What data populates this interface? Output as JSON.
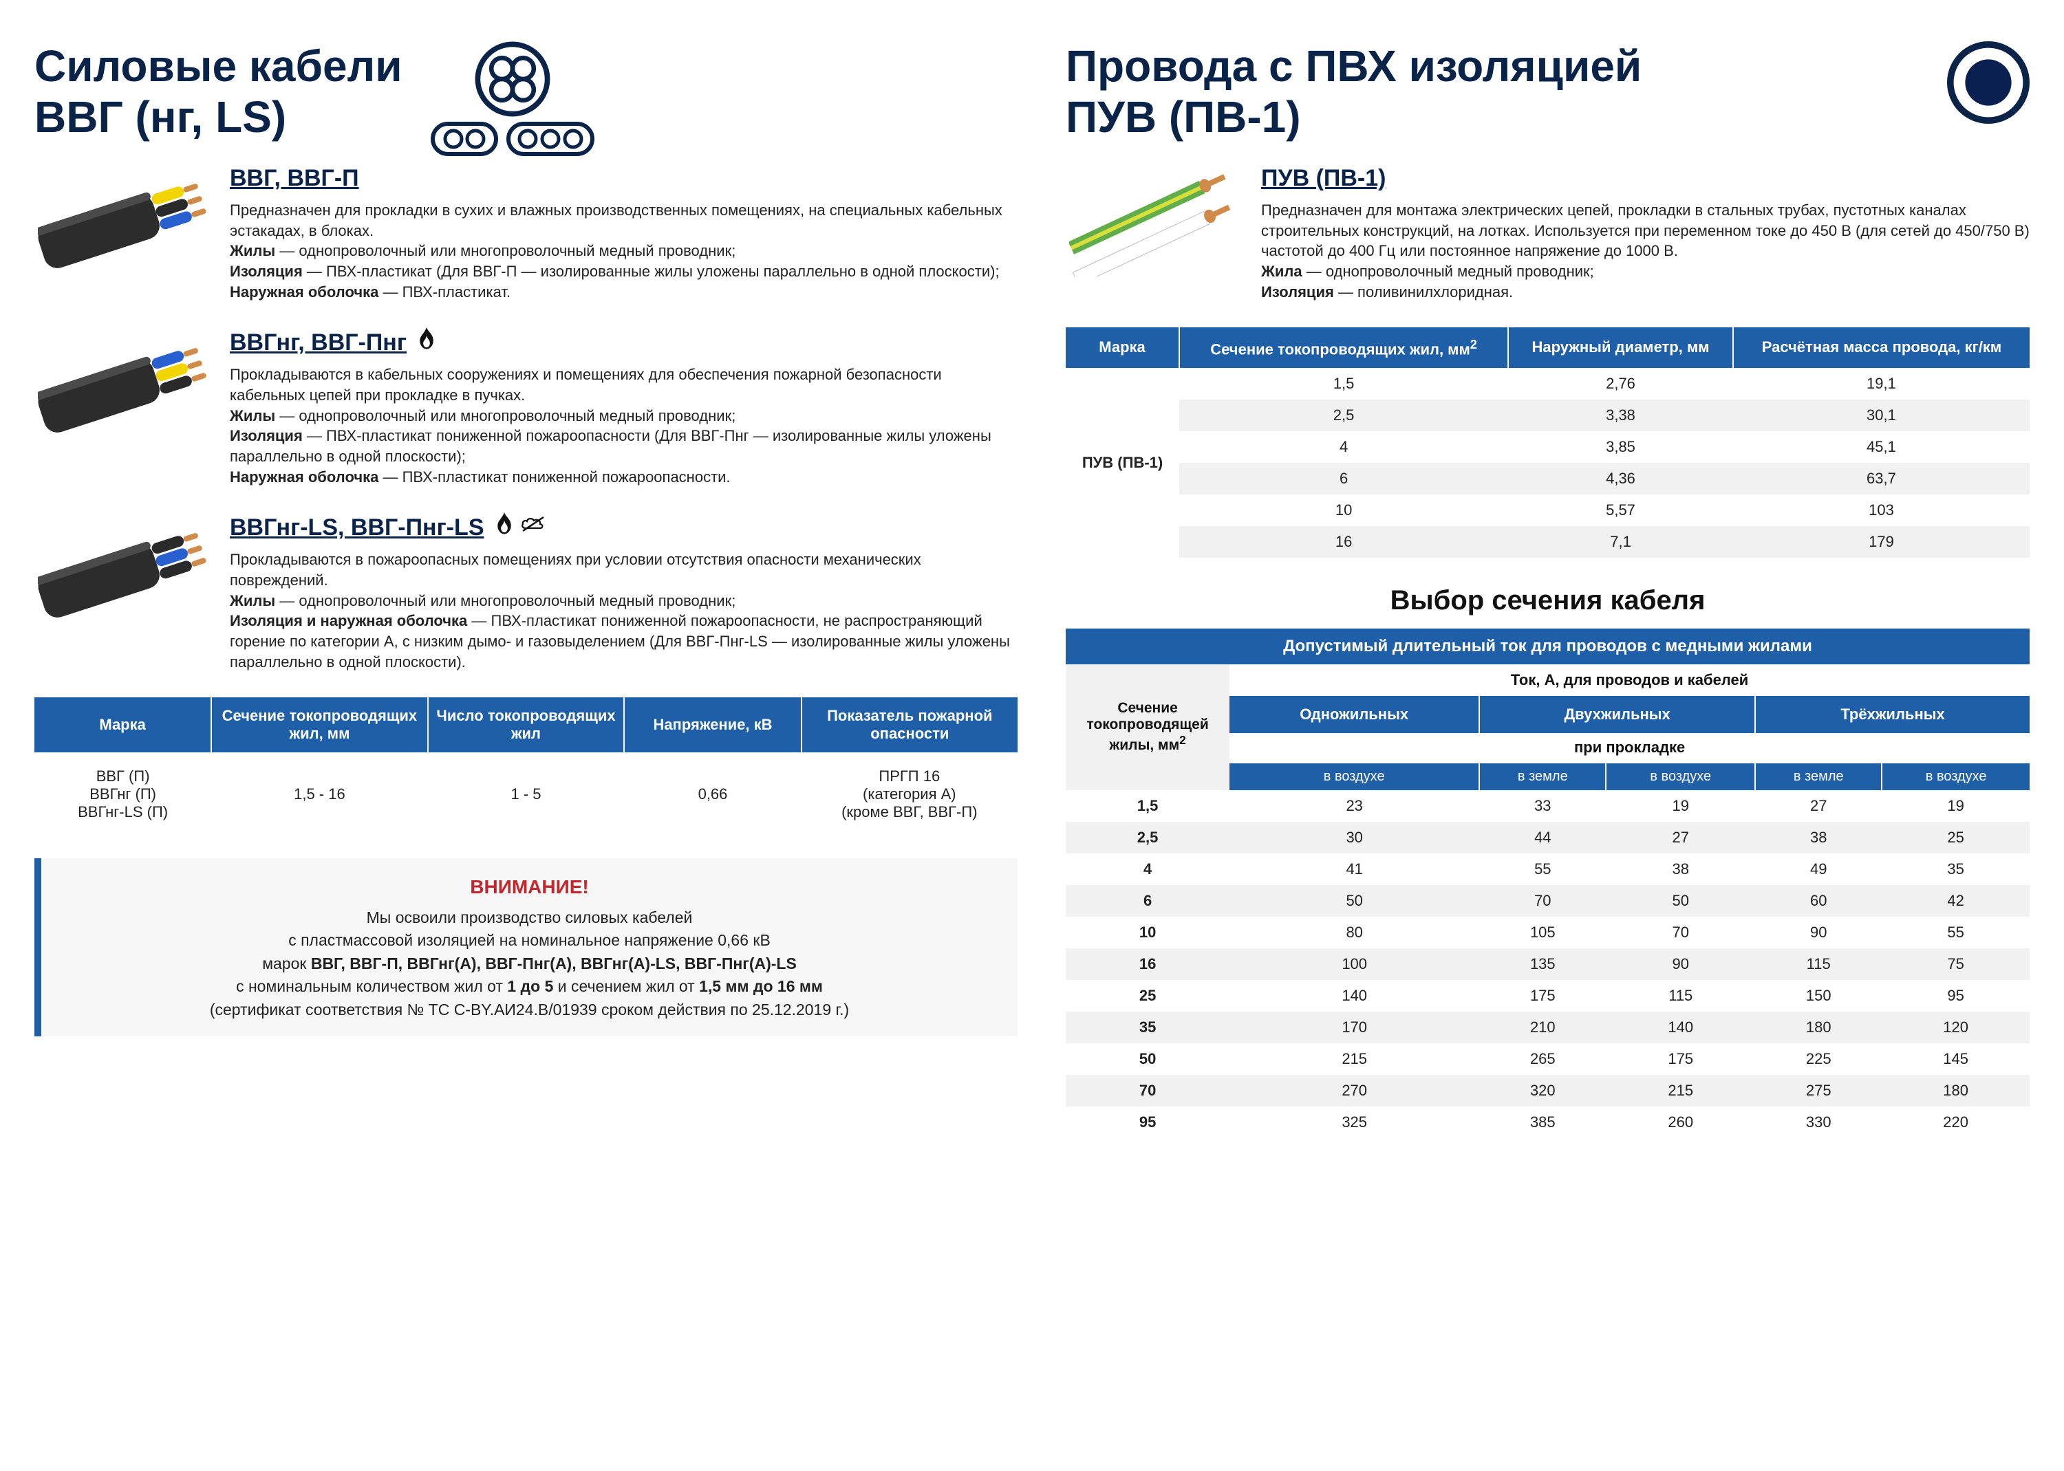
{
  "left": {
    "heading_line1": "Силовые кабели",
    "heading_line2": "ВВГ (нг, LS)",
    "icon_stroke": "#0a2348",
    "cables": [
      {
        "title": "ВВГ, ВВГ-П",
        "flame": false,
        "nosmoke": false,
        "desc_html": "Предназначен для прокладки в сухих и влажных производственных помещениях, на специальных кабельных эстакадах, в блоках.<br><b>Жилы</b> — однопроволочный или многопроволочный медный проводник;<br><b>Изоляция</b> — ПВХ-пластикат (Для ВВГ-П — изолированные жилы уложены параллельно в одной плоскости);<br><b>Наружная оболочка</b> — ПВХ-пластикат.",
        "img_colors": [
          "#f1d400",
          "#2a2a2a",
          "#2860d0"
        ]
      },
      {
        "title": "ВВГнг, ВВГ-Пнг",
        "flame": true,
        "nosmoke": false,
        "desc_html": "Прокладываются в кабельных сооружениях и помещениях для обеспечения пожарной безопасности кабельных цепей при прокладке в пучках.<br><b>Жилы</b> — однопроволочный или многопроволочный медный проводник;<br><b>Изоляция</b> — ПВХ-пластикат пониженной пожароопасности (Для ВВГ-Пнг — изолированные жилы уложены параллельно в одной плоскости);<br><b>Наружная оболочка</b> — ПВХ-пластикат пониженной пожароопасности.",
        "img_colors": [
          "#2860d0",
          "#f1d400",
          "#2a2a2a"
        ]
      },
      {
        "title": "ВВГнг-LS, ВВГ-Пнг-LS",
        "flame": true,
        "nosmoke": true,
        "desc_html": "Прокладываются в пожароопасных помещениях при условии отсутствия опасности механических повреждений.<br><b>Жилы</b> — однопроволочный или многопроволочный медный проводник;<br><b>Изоляция и наружная оболочка</b> — ПВХ-пластикат пониженной пожароопасности, не распространяющий горение по категории А, с низким дымо- и газовыделением (Для ВВГ-Пнг-LS — изолированные жилы уложены параллельно в одной плоскости).",
        "img_colors": [
          "#2a2a2a",
          "#2860d0",
          "#2a2a2a"
        ]
      }
    ],
    "table1": {
      "headers": [
        "Марка",
        "Сечение токопроводящих жил, мм",
        "Число токопроводящих жил",
        "Напряжение, кВ",
        "Показатель пожарной опасности"
      ],
      "col_widths": [
        "18%",
        "22%",
        "20%",
        "18%",
        "22%"
      ],
      "row": {
        "brand": "ВВГ (П)\nВВГнг (П)\nВВГнг-LS (П)",
        "section": "1,5 - 16",
        "cores": "1 - 5",
        "voltage": "0,66",
        "fire": "ПРГП 16\n(категория А)\n(кроме ВВГ, ВВГ-П)"
      }
    },
    "attention": {
      "title": "ВНИМАНИЕ!",
      "body_html": "Мы освоили производство силовых кабелей<br>с пластмассовой изоляцией на номинальное напряжение 0,66 кВ<br>марок <b>ВВГ, ВВГ-П, ВВГнг(А), ВВГ-Пнг(А), ВВГнг(А)-LS, ВВГ-Пнг(А)-LS</b><br>с номинальным количеством жил от <b>1 до 5</b> и сечением жил от <b>1,5 мм до 16 мм</b><br>(сертификат соответствия № ТС С-BY.АИ24.В/01939 сроком действия по 25.12.2019 г.)"
    }
  },
  "right": {
    "heading_line1": "Провода с ПВХ изоляцией",
    "heading_line2": "ПУВ (ПВ-1)",
    "icon_fill": "#0a2050",
    "icon_ring": "#0a2348",
    "cable": {
      "title": "ПУВ (ПВ-1)",
      "desc_html": "Предназначен для монтажа электрических цепей, прокладки в стальных трубах, пустотных каналах строительных конструкций, на лотках. Используется при переменном токе до 450 В (для сетей до 450/750 В) частотой до 400 Гц или постоянное напряжение до 1000 В.<br><b>Жила</b> — однопроволочный медный проводник;<br><b>Изоляция</b> — поливинилхлоридная."
    },
    "table_puv": {
      "headers": [
        "Марка",
        "Сечение токопроводящих жил, мм²",
        "Наружный диаметр, мм",
        "Расчётная масса провода, кг/км"
      ],
      "brand_label": "ПУВ (ПВ-1)",
      "rows": [
        [
          "1,5",
          "2,76",
          "19,1"
        ],
        [
          "2,5",
          "3,38",
          "30,1"
        ],
        [
          "4",
          "3,85",
          "45,1"
        ],
        [
          "6",
          "4,36",
          "63,7"
        ],
        [
          "10",
          "5,57",
          "103"
        ],
        [
          "16",
          "7,1",
          "179"
        ]
      ]
    },
    "section_title": "Выбор сечения кабеля",
    "table_current": {
      "caption": "Допустимый длительный ток для проводов с медными жилами",
      "mid_label": "Ток, А, для проводов и кабелей",
      "headers_top": [
        "Сечение токопроводящей жилы, мм²",
        "Одножильных",
        "Двухжильных",
        "Трёхжильных"
      ],
      "sublabel": "при прокладке",
      "headers_bottom": [
        "в воздухе",
        "в земле",
        "в воздухе",
        "в земле",
        "в воздухе"
      ],
      "rows": [
        [
          "1,5",
          "23",
          "33",
          "19",
          "27",
          "19"
        ],
        [
          "2,5",
          "30",
          "44",
          "27",
          "38",
          "25"
        ],
        [
          "4",
          "41",
          "55",
          "38",
          "49",
          "35"
        ],
        [
          "6",
          "50",
          "70",
          "50",
          "60",
          "42"
        ],
        [
          "10",
          "80",
          "105",
          "70",
          "90",
          "55"
        ],
        [
          "16",
          "100",
          "135",
          "90",
          "115",
          "75"
        ],
        [
          "25",
          "140",
          "175",
          "115",
          "150",
          "95"
        ],
        [
          "35",
          "170",
          "210",
          "140",
          "180",
          "120"
        ],
        [
          "50",
          "215",
          "265",
          "175",
          "225",
          "145"
        ],
        [
          "70",
          "270",
          "320",
          "215",
          "275",
          "180"
        ],
        [
          "95",
          "325",
          "385",
          "260",
          "330",
          "220"
        ]
      ]
    }
  },
  "colors": {
    "header_blue": "#1e5fa8",
    "heading_navy": "#0a2348",
    "attention_red": "#c1272d",
    "row_alt": "#f1f1f1"
  }
}
